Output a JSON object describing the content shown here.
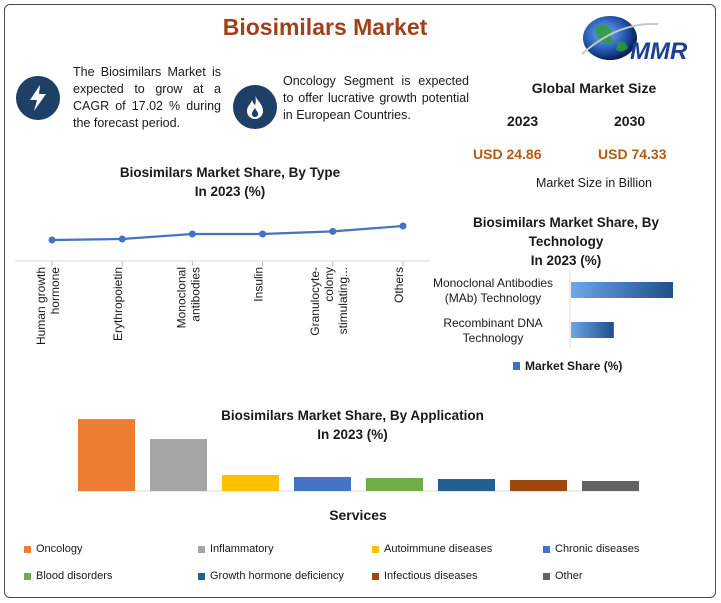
{
  "title": "Biosimilars Market",
  "logo": {
    "text": "MMR"
  },
  "facts": [
    {
      "icon": "lightning-icon",
      "text": "The Biosimilars Market is expected to grow at a CAGR of 17.02 % during the forecast period."
    },
    {
      "icon": "flame-icon",
      "text": "Oncology Segment is expected to offer lucrative growth potential in European Countries."
    }
  ],
  "global_market": {
    "title": "Global Market Size",
    "year1": "2023",
    "year2": "2030",
    "value1": "USD 24.86",
    "value2": "USD 74.33",
    "unit": "Market Size in Billion"
  },
  "colors": {
    "title": "#a0411a",
    "line": "#4472c4",
    "bar_blue": "#3b6fc0",
    "value": "#b55a12"
  },
  "chart_data": [
    {
      "type": "line",
      "title": "Biosimilars Market Share, By Type",
      "subtitle": "In 2023 (%)",
      "categories": [
        "Human growth hormone",
        "Erythropoietin",
        "Monoclonal antibodies",
        "Insulin",
        "Granulocyte-colony stimulating...",
        "Others"
      ],
      "values": [
        10.5,
        11,
        13.5,
        13.5,
        14.8,
        17.5
      ],
      "ylim": [
        0,
        40
      ]
    },
    {
      "type": "bar",
      "orientation": "horizontal",
      "title": "Biosimilars Market Share, By Technology",
      "subtitle": "In 2023 (%)",
      "categories": [
        "Monoclonal Antibodies (MAb) Technology",
        "Recombinant DNA Technology"
      ],
      "series": [
        {
          "name": "Market Share (%)",
          "values": [
            100,
            42
          ]
        }
      ],
      "xlim": [
        0,
        100
      ],
      "legend": "bottom"
    },
    {
      "type": "bar",
      "title": "Biosimilars Market Share, By Application",
      "subtitle": "In 2023 (%)",
      "xlabel": "Services",
      "categories": [
        "Oncology",
        "Inflammatory",
        "Autoimmune diseases",
        "Chronic diseases",
        "Blood disorders",
        "Growth hormone deficiency",
        "Infectious diseases",
        "Other"
      ],
      "values": [
        36,
        26,
        8,
        7,
        6.5,
        6,
        5.5,
        5
      ],
      "colors": [
        "#ed7d31",
        "#a5a5a5",
        "#ffc000",
        "#4472c4",
        "#70ad47",
        "#255e91",
        "#9e480e",
        "#636363"
      ],
      "ylim": [
        0,
        40
      ],
      "legend": "bottom"
    }
  ]
}
